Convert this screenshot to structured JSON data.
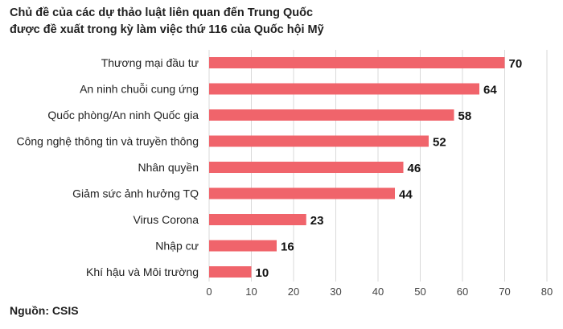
{
  "chart_data": {
    "type": "bar",
    "orientation": "horizontal",
    "title_lines": [
      "Chủ đề của các dự thảo luật liên quan đến Trung Quốc",
      "được đề xuất trong kỳ làm việc thứ 116 của Quốc hội Mỹ"
    ],
    "categories": [
      "Thương mại đầu tư",
      "An ninh chuỗi cung ứng",
      "Quốc phòng/An ninh Quốc gia",
      "Công nghệ thông tin và truyền thông",
      "Nhân quyền",
      "Giảm sức ảnh hưởng TQ",
      "Virus Corona",
      "Nhập cư",
      "Khí hậu và Môi trường"
    ],
    "values": [
      70,
      64,
      58,
      52,
      46,
      44,
      23,
      16,
      10
    ],
    "xlim": [
      0,
      80
    ],
    "xticks": [
      0,
      10,
      20,
      30,
      40,
      50,
      60,
      70,
      80
    ],
    "grid": true,
    "bar_color": "#f0646b",
    "grid_color": "#d9d9d9",
    "source": "Nguồn: CSIS"
  }
}
